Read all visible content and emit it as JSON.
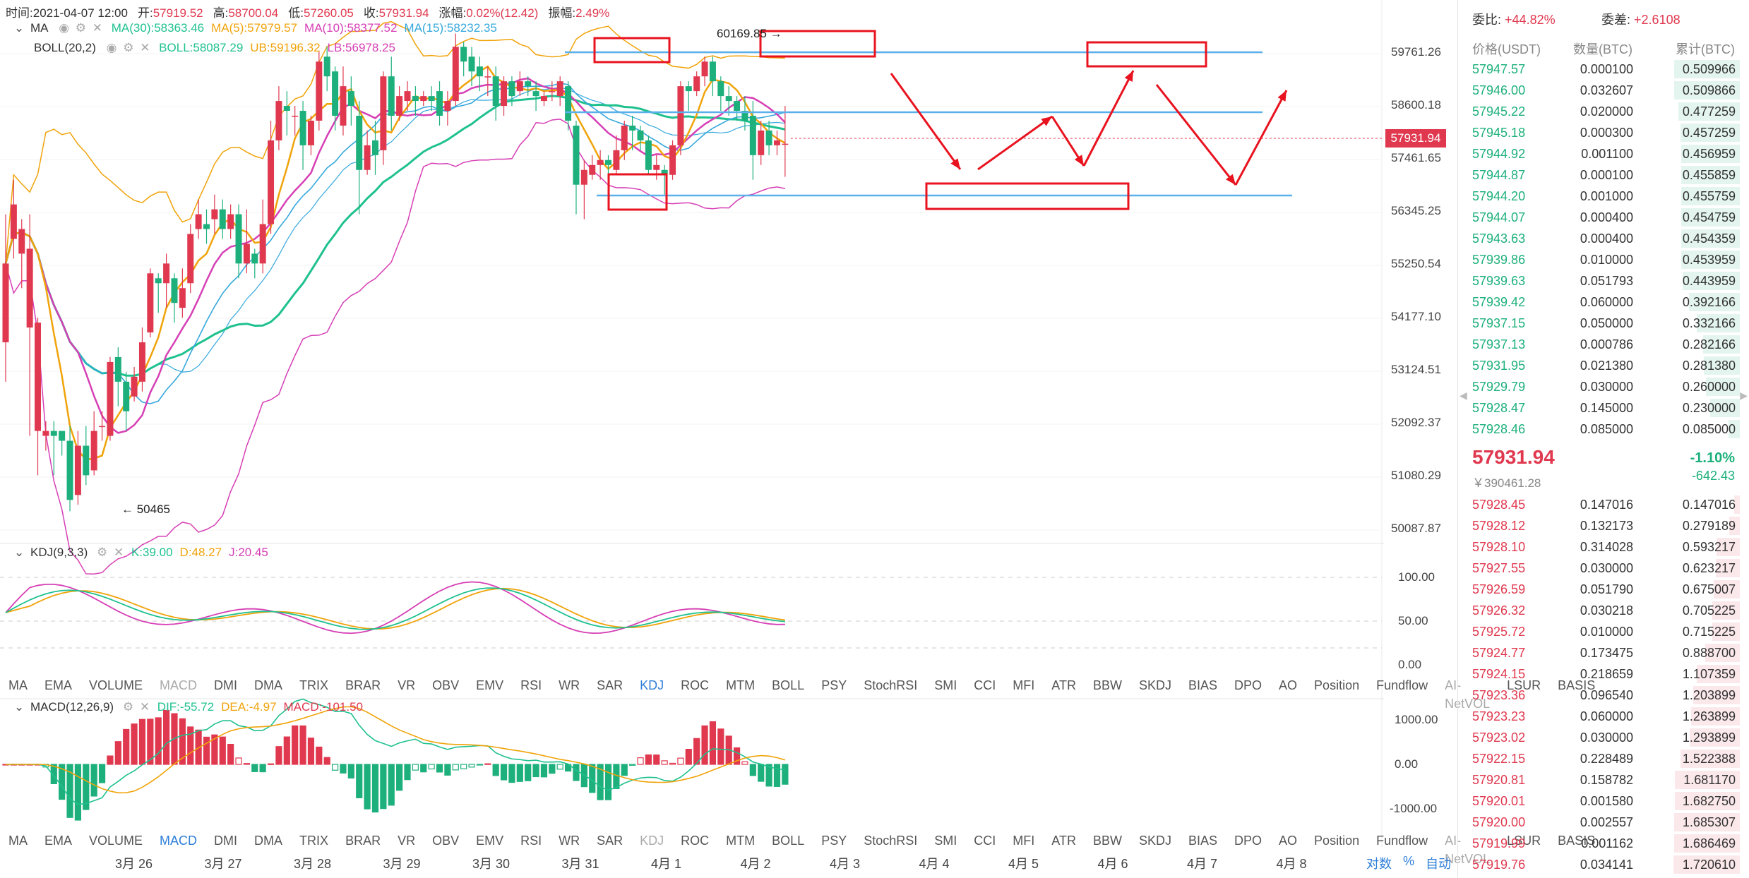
{
  "header": {
    "row1": [
      {
        "label": "时间:",
        "value": "2021-04-07 12:00",
        "color": "#333"
      },
      {
        "label": "开:",
        "value": "57919.52",
        "color": "#e0394f"
      },
      {
        "label": "高:",
        "value": "58700.04",
        "color": "#e0394f"
      },
      {
        "label": "低:",
        "value": "57260.05",
        "color": "#e0394f"
      },
      {
        "label": "收:",
        "value": "57931.94",
        "color": "#e0394f"
      },
      {
        "label": "涨幅:",
        "value": "0.02%(12.42)",
        "color": "#e0394f"
      },
      {
        "label": "振幅:",
        "value": "2.49%",
        "color": "#e0394f"
      }
    ],
    "ma_title": "MA",
    "ma_values": [
      {
        "text": "MA(30):58363.46",
        "color": "#1fc18f"
      },
      {
        "text": "MA(5):57979.57",
        "color": "#f0a30a"
      },
      {
        "text": "MA(10):58377.52",
        "color": "#d63fb5"
      },
      {
        "text": "MA(15):58232.35",
        "color": "#35a8dc"
      }
    ],
    "boll_title": "BOLL(20,2)",
    "boll_values": [
      {
        "text": "BOLL:58087.29",
        "color": "#1fc18f"
      },
      {
        "text": "UB:59196.32",
        "color": "#f0a30a"
      },
      {
        "text": "LB:56978.25",
        "color": "#d63fb5"
      }
    ]
  },
  "price_axis": [
    "59761.26",
    "58600.18",
    "57461.65",
    "56345.25",
    "55250.54",
    "54177.10",
    "53124.51",
    "52092.37",
    "51080.29",
    "50087.87"
  ],
  "current_price_tag": "57931.94",
  "annotations": {
    "high_label": "60169.85 →",
    "low_label": "← 50465"
  },
  "kdj": {
    "title": "KDJ(9,3,3)",
    "values": [
      {
        "text": "K:39.00",
        "color": "#1fc18f"
      },
      {
        "text": "D:48.27",
        "color": "#f0a30a"
      },
      {
        "text": "J:20.45",
        "color": "#d63fb5"
      }
    ],
    "axis": [
      "100.00",
      "50.00",
      "0.00"
    ]
  },
  "macd": {
    "title": "MACD(12,26,9)",
    "values": [
      {
        "text": "DIF:-55.72",
        "color": "#1fc18f"
      },
      {
        "text": "DEA:-4.97",
        "color": "#f0a30a"
      },
      {
        "text": "MACD:-101.50",
        "color": "#e0394f"
      }
    ],
    "axis": [
      "1000.00",
      "0.00",
      "-1000.00"
    ]
  },
  "indicator_tabs": [
    "MA",
    "EMA",
    "VOLUME",
    "MACD",
    "DMI",
    "DMA",
    "TRIX",
    "BRAR",
    "VR",
    "OBV",
    "EMV",
    "RSI",
    "WR",
    "SAR",
    "KDJ",
    "ROC",
    "MTM",
    "BOLL",
    "PSY",
    "StochRSI",
    "SMI",
    "CCI",
    "MFI",
    "ATR",
    "BBW",
    "SKDJ",
    "BIAS",
    "DPO",
    "AO",
    "Position",
    "Fundflow",
    "AI-NetVOL",
    "LSUR",
    "BASIS"
  ],
  "x_axis": [
    "3月 26",
    "3月 27",
    "3月 28",
    "3月 29",
    "3月 30",
    "3月 31",
    "4月 1",
    "4月 2",
    "4月 3",
    "4月 4",
    "4月 5",
    "4月 6",
    "4月 7",
    "4月 8"
  ],
  "bottom_controls": [
    "对数",
    "%",
    "自动"
  ],
  "orderbook": {
    "ratio_label": "委比:",
    "ratio_value": "+44.82%",
    "diff_label": "委差:",
    "diff_value": "+2.6108",
    "col_price": "价格(USDT)",
    "col_qty": "数量(BTC)",
    "col_cum": "累计(BTC)",
    "bids": [
      [
        "57947.57",
        "0.000100",
        "0.509966"
      ],
      [
        "57946.00",
        "0.032607",
        "0.509866"
      ],
      [
        "57945.22",
        "0.020000",
        "0.477259"
      ],
      [
        "57945.18",
        "0.000300",
        "0.457259"
      ],
      [
        "57944.92",
        "0.001100",
        "0.456959"
      ],
      [
        "57944.87",
        "0.000100",
        "0.455859"
      ],
      [
        "57944.20",
        "0.001000",
        "0.455759"
      ],
      [
        "57944.07",
        "0.000400",
        "0.454759"
      ],
      [
        "57943.63",
        "0.000400",
        "0.454359"
      ],
      [
        "57939.86",
        "0.010000",
        "0.453959"
      ],
      [
        "57939.63",
        "0.051793",
        "0.443959"
      ],
      [
        "57939.42",
        "0.060000",
        "0.392166"
      ],
      [
        "57937.15",
        "0.050000",
        "0.332166"
      ],
      [
        "57937.13",
        "0.000786",
        "0.282166"
      ],
      [
        "57931.95",
        "0.021380",
        "0.281380"
      ],
      [
        "57929.79",
        "0.030000",
        "0.260000"
      ],
      [
        "57928.47",
        "0.145000",
        "0.230000"
      ],
      [
        "57928.46",
        "0.085000",
        "0.085000"
      ]
    ],
    "last_price": "57931.94",
    "last_cny": "￥390461.28",
    "change_pct": "-1.10%",
    "change_abs": "-642.43",
    "asks": [
      [
        "57928.45",
        "0.147016",
        "0.147016"
      ],
      [
        "57928.12",
        "0.132173",
        "0.279189"
      ],
      [
        "57928.10",
        "0.314028",
        "0.593217"
      ],
      [
        "57927.55",
        "0.030000",
        "0.623217"
      ],
      [
        "57926.59",
        "0.051790",
        "0.675007"
      ],
      [
        "57926.32",
        "0.030218",
        "0.705225"
      ],
      [
        "57925.72",
        "0.010000",
        "0.715225"
      ],
      [
        "57924.77",
        "0.173475",
        "0.888700"
      ],
      [
        "57924.15",
        "0.218659",
        "1.107359"
      ],
      [
        "57923.36",
        "0.096540",
        "1.203899"
      ],
      [
        "57923.23",
        "0.060000",
        "1.263899"
      ],
      [
        "57923.02",
        "0.030000",
        "1.293899"
      ],
      [
        "57922.15",
        "0.228489",
        "1.522388"
      ],
      [
        "57920.81",
        "0.158782",
        "1.681170"
      ],
      [
        "57920.01",
        "0.001580",
        "1.682750"
      ],
      [
        "57920.00",
        "0.002557",
        "1.685307"
      ],
      [
        "57919.99",
        "0.001162",
        "1.686469"
      ],
      [
        "57919.76",
        "0.034141",
        "1.720610"
      ]
    ]
  }
}
